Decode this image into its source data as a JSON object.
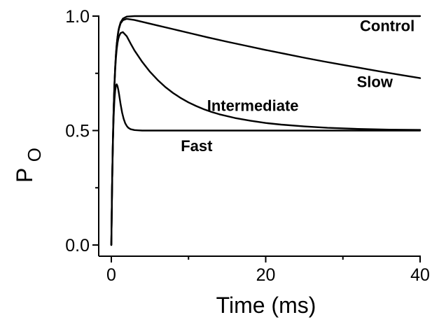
{
  "chart_data": {
    "type": "line",
    "title": "",
    "xlabel": "Time (ms)",
    "ylabel": "P",
    "ylabel_subscript": "O",
    "xlim": [
      0,
      40
    ],
    "ylim": [
      0,
      1.0
    ],
    "xticks": [
      0,
      20,
      40
    ],
    "xtick_labels": [
      "0",
      "20",
      "40"
    ],
    "yticks": [
      0,
      0.5,
      1.0
    ],
    "ytick_labels": [
      "0.0",
      "0.5",
      "1.0"
    ],
    "grid": false,
    "legend": "none",
    "series": [
      {
        "name": "Control",
        "label_x": 32.2,
        "label_y": 0.935,
        "x": [
          0,
          0.1,
          0.2,
          0.3,
          0.4,
          0.5,
          0.6,
          0.7,
          0.8,
          0.9,
          1.0,
          1.2,
          1.5,
          2.0,
          3,
          5,
          10,
          20,
          30,
          40
        ],
        "y": [
          0,
          0.259,
          0.451,
          0.593,
          0.699,
          0.777,
          0.835,
          0.878,
          0.909,
          0.933,
          0.95,
          0.973,
          0.989,
          0.998,
          1.0,
          1.0,
          1.0,
          1.0,
          1.0,
          1.0
        ]
      },
      {
        "name": "Slow",
        "label_x": 31.8,
        "label_y": 0.69,
        "x": [
          0,
          0.1,
          0.2,
          0.3,
          0.4,
          0.5,
          0.6,
          0.7,
          0.8,
          0.9,
          1.0,
          1.2,
          1.5,
          2.0,
          3,
          4,
          6,
          8,
          10,
          12.5,
          15,
          17.5,
          20,
          22.5,
          25,
          27.5,
          30,
          32.5,
          35,
          37.5,
          40
        ],
        "y": [
          0,
          0.259,
          0.451,
          0.593,
          0.699,
          0.777,
          0.834,
          0.876,
          0.907,
          0.93,
          0.946,
          0.968,
          0.982,
          0.988,
          0.983,
          0.975,
          0.959,
          0.943,
          0.927,
          0.907,
          0.888,
          0.87,
          0.852,
          0.835,
          0.818,
          0.802,
          0.787,
          0.772,
          0.757,
          0.743,
          0.729
        ]
      },
      {
        "name": "Intermediate",
        "label_x": 12.4,
        "label_y": 0.585,
        "x": [
          0,
          0.1,
          0.2,
          0.3,
          0.4,
          0.5,
          0.6,
          0.7,
          0.8,
          0.9,
          1.0,
          1.2,
          1.5,
          2.0,
          2.5,
          3,
          4,
          5,
          6,
          7,
          8,
          9,
          10,
          11,
          12,
          13,
          14,
          16,
          18,
          20,
          22,
          25,
          28,
          32,
          36,
          40
        ],
        "y": [
          0,
          0.259,
          0.449,
          0.588,
          0.69,
          0.765,
          0.818,
          0.856,
          0.882,
          0.9,
          0.912,
          0.926,
          0.93,
          0.912,
          0.88,
          0.85,
          0.8,
          0.757,
          0.721,
          0.69,
          0.664,
          0.642,
          0.623,
          0.607,
          0.593,
          0.581,
          0.571,
          0.555,
          0.543,
          0.533,
          0.526,
          0.518,
          0.512,
          0.507,
          0.504,
          0.503
        ]
      },
      {
        "name": "Fast",
        "label_x": 9.0,
        "label_y": 0.41,
        "x": [
          0,
          0.1,
          0.2,
          0.3,
          0.4,
          0.5,
          0.6,
          0.7,
          0.8,
          0.9,
          1.0,
          1.1,
          1.2,
          1.4,
          1.6,
          1.8,
          2.0,
          2.2,
          2.5,
          3.0,
          3.5,
          4,
          5,
          10,
          20,
          30,
          40
        ],
        "y": [
          0,
          0.259,
          0.44,
          0.558,
          0.632,
          0.675,
          0.697,
          0.702,
          0.694,
          0.679,
          0.659,
          0.637,
          0.615,
          0.578,
          0.551,
          0.532,
          0.52,
          0.512,
          0.506,
          0.502,
          0.501,
          0.5,
          0.5,
          0.5,
          0.5,
          0.5,
          0.5
        ]
      }
    ]
  }
}
